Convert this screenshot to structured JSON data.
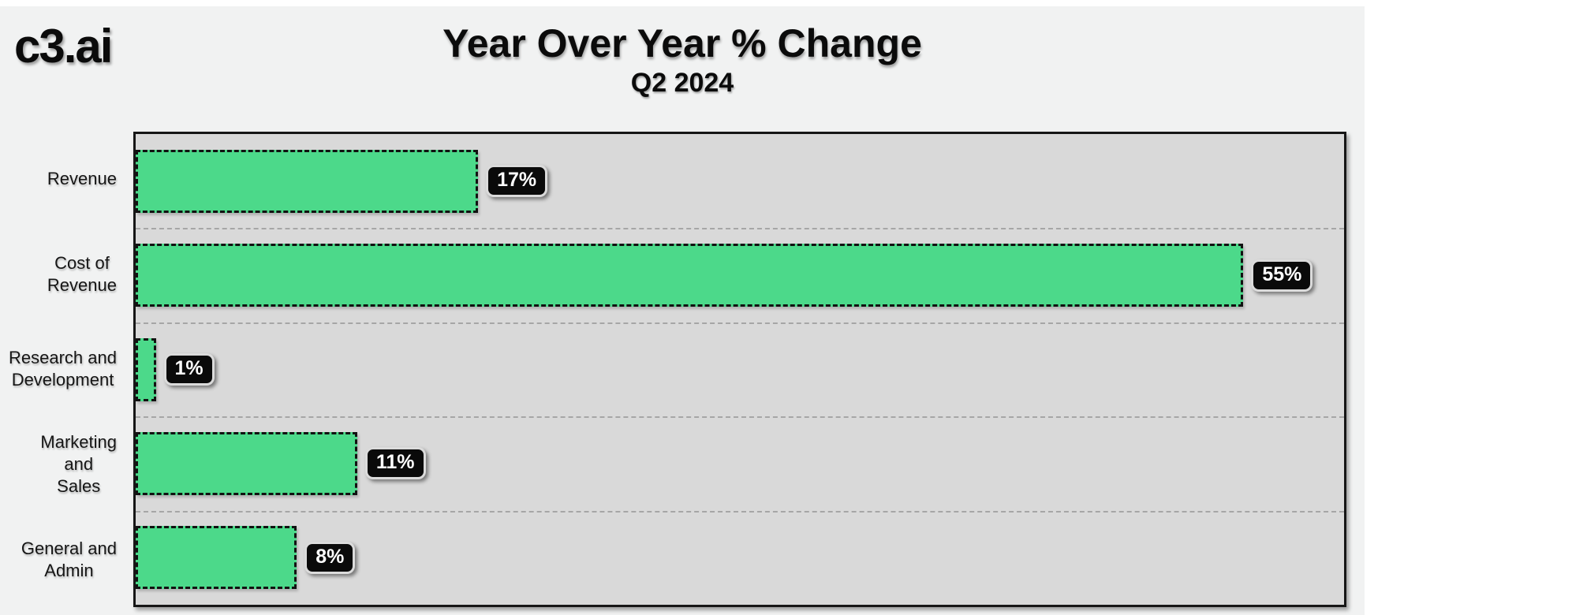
{
  "page": {
    "background": "#ffffff",
    "panel_background": "#f1f2f2"
  },
  "header": {
    "logo": "c3.ai",
    "title": "Year Over Year % Change",
    "subtitle": "Q2 2024"
  },
  "chart_data": {
    "type": "bar",
    "orientation": "horizontal",
    "title": "Year Over Year % Change",
    "subtitle": "Q2 2024",
    "categories": [
      "Revenue",
      "Cost of\nRevenue",
      "Research and\nDevelopment",
      "Marketing\nand\nSales",
      "General and\nAdmin"
    ],
    "values": [
      17,
      55,
      1,
      11,
      8
    ],
    "value_labels": [
      "17%",
      "55%",
      "1%",
      "11%",
      "8%"
    ],
    "xlim": [
      0,
      60
    ],
    "xlabel": "",
    "ylabel": "",
    "grid": "dashed gray separators between category bands, no x-axis ticks",
    "legend": "none",
    "style": {
      "bar_color": "#4cd98a",
      "bar_border_color": "#111111",
      "plot_background": "#d9d9d9",
      "plot_border_color": "#161616",
      "gridline_color": "#a6a6a6",
      "value_pill_background": "#0a0a0a",
      "value_pill_text_color": "#ffffff"
    }
  }
}
